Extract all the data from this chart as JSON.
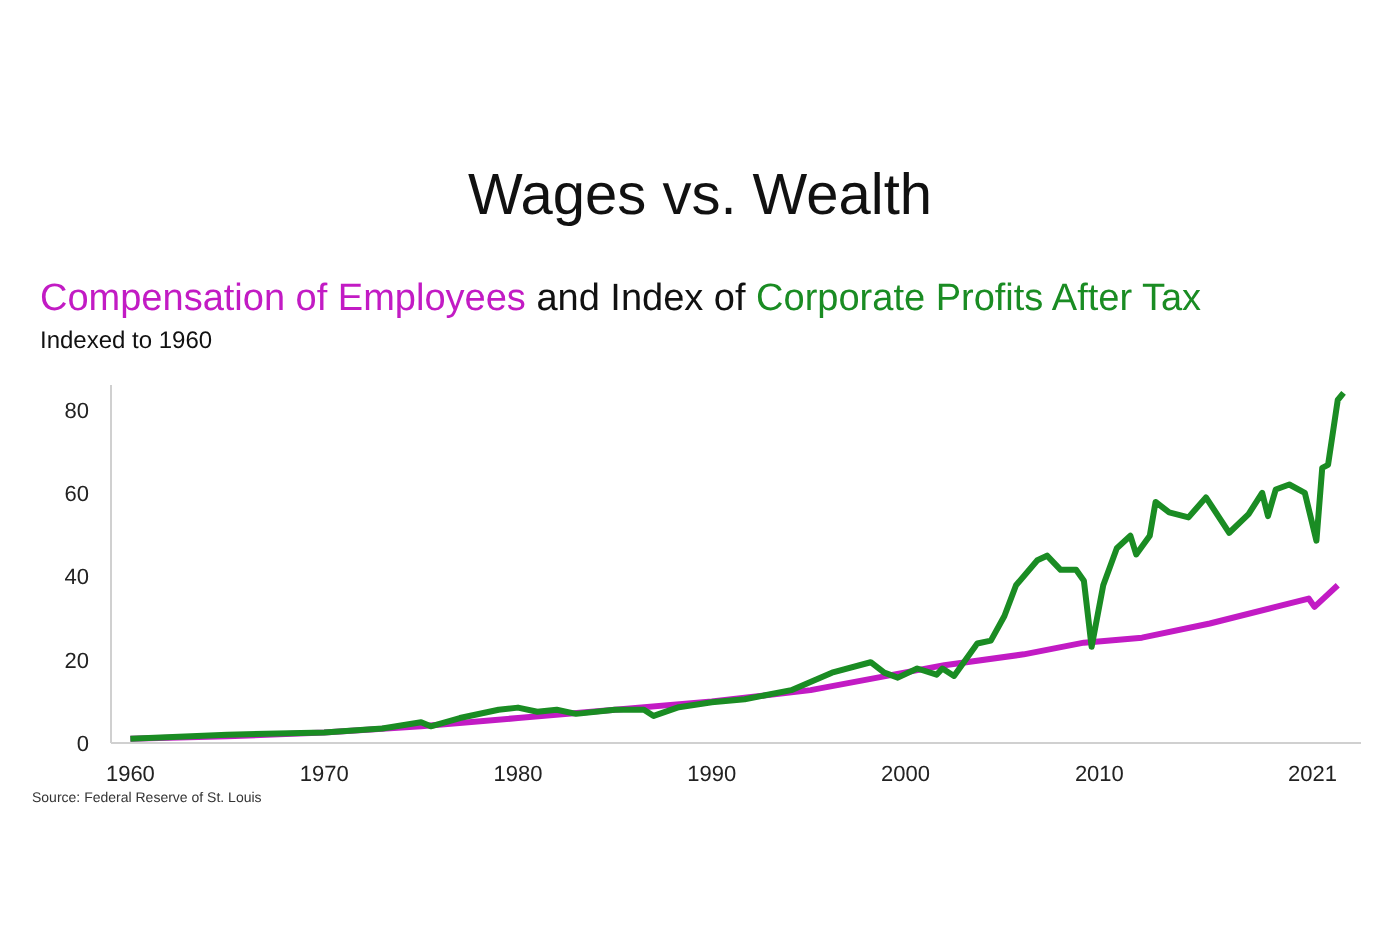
{
  "chart_data": {
    "type": "line",
    "title": "Wages vs. Wealth",
    "subtitle": "and Index of",
    "ylabel": "Indexed to 1960",
    "annotations": [
      "Source: Federal Reserve of St. Louis"
    ],
    "xlim": [
      1959,
      2023.5
    ],
    "xticks": [
      1960,
      1970,
      1980,
      1990,
      2000,
      2010,
      2021
    ],
    "ylim": [
      0,
      86
    ],
    "yticks": [
      0,
      20,
      40,
      60,
      80
    ],
    "grid": false,
    "legend": false,
    "marker": "none",
    "line_style": "solid",
    "series": [
      {
        "name": "Compensation of Employees",
        "color": "#c21bc4",
        "x": [
          1960,
          1965,
          1970,
          1975,
          1980,
          1985,
          1990,
          1995.1,
          2002,
          2006.1,
          2009.2,
          2012.2,
          2015.7,
          2019.1,
          2020.8,
          2021.1,
          2022.3
        ],
        "values": [
          1,
          1.6,
          2.5,
          4,
          6,
          8,
          10,
          12.7,
          18.7,
          21.3,
          24.1,
          25.3,
          28.7,
          32.7,
          34.7,
          32.7,
          37.9
        ]
      },
      {
        "name": "Corporate Profits After Tax",
        "color": "#1a8c23",
        "x": [
          1960,
          1965,
          1970,
          1973,
          1975,
          1975.5,
          1977,
          1979,
          1980,
          1981,
          1982,
          1983,
          1985,
          1986.5,
          1987,
          1988.3,
          1990,
          1991.7,
          1994.1,
          1996.2,
          1998.2,
          1998.9,
          1999.6,
          2000.6,
          2001.6,
          2001.9,
          2002.5,
          2003.7,
          2004.4,
          2005.1,
          2005.7,
          2006.8,
          2007.3,
          2008,
          2008.8,
          2009.2,
          2009.6,
          2010.2,
          2010.9,
          2011.6,
          2011.9,
          2012.6,
          2012.9,
          2013.6,
          2014.6,
          2015.5,
          2016.7,
          2017.7,
          2018.4,
          2018.7,
          2019.1,
          2019.8,
          2020.6,
          2021.2,
          2021.5,
          2021.8,
          2022.3,
          2022.6
        ],
        "values": [
          1,
          2,
          2.5,
          3.5,
          5,
          4,
          6,
          8,
          8.5,
          7.5,
          8,
          7,
          8,
          8,
          6.5,
          8.6,
          9.8,
          10.5,
          12.7,
          16.9,
          19.4,
          16.9,
          15.7,
          17.9,
          16.4,
          17.9,
          16.1,
          23.9,
          24.6,
          30.5,
          37.9,
          43.9,
          45,
          41.6,
          41.6,
          39,
          23.1,
          37.9,
          46.8,
          49.8,
          45.3,
          49.8,
          57.9,
          55.4,
          54.2,
          59,
          50.5,
          55,
          60.1,
          54.5,
          60.9,
          62.1,
          60.1,
          48.6,
          66.1,
          66.8,
          82.4,
          84.1
        ]
      }
    ]
  }
}
